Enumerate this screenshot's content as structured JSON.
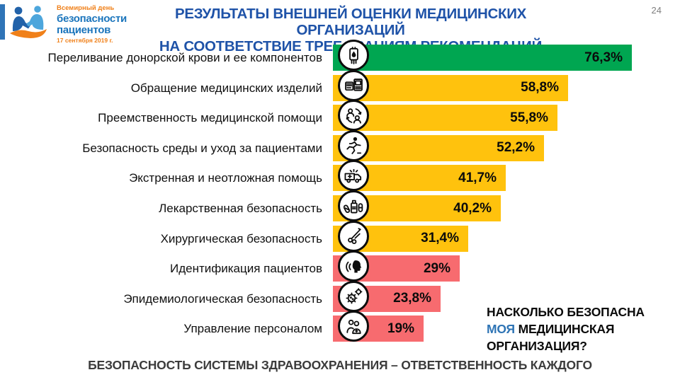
{
  "page_number": "24",
  "logo": {
    "line1": "Всемирный день",
    "line2": "безопасности",
    "line3": "пациентов",
    "line4": "17 сентября 2019 г."
  },
  "title": {
    "line1": "РЕЗУЛЬТАТЫ ВНЕШНЕЙ ОЦЕНКИ МЕДИЦИНСКИХ ОРГАНИЗАЦИЙ",
    "line2": "НА СООТВЕТСТВИЕ ТРЕБОВАНИЯМ РЕКОМЕНДАЦИЙ"
  },
  "chart_data": {
    "type": "bar",
    "orientation": "horizontal",
    "unit": "%",
    "xlim": [
      0,
      80
    ],
    "grid": false,
    "legend": "none",
    "categories": [
      "Переливание донорской крови и ее компонентов",
      "Обращение медицинских изделий",
      "Преемственность медицинской помощи",
      "Безопасность среды и уход за пациентами",
      "Экстренная и неотложная помощь",
      "Лекарственная безопасность",
      "Хирургическая безопасность",
      "Идентификация пациентов",
      "Эпидемиологическая безопасность",
      "Управление персоналом"
    ],
    "values": [
      76.3,
      58.8,
      55.8,
      52.2,
      41.7,
      40.2,
      31.4,
      29,
      23.8,
      19
    ],
    "value_labels": [
      "76,3%",
      "58,8%",
      "55,8%",
      "52,2%",
      "41,7%",
      "40,2%",
      "31,4%",
      "29%",
      "23,8%",
      "19%"
    ],
    "bar_color_keys": [
      "green",
      "yellow",
      "yellow",
      "yellow",
      "yellow",
      "yellow",
      "yellow",
      "red",
      "red",
      "red"
    ],
    "colors": {
      "green": "#00A651",
      "yellow": "#FFC20D",
      "red": "#F76B6F"
    },
    "icons": [
      "blood-bag-icon",
      "medical-devices-icon",
      "care-continuity-icon",
      "falling-patient-icon",
      "ambulance-icon",
      "medication-icon",
      "surgical-scissors-icon",
      "patient-identification-icon",
      "microbes-icon",
      "personnel-icon"
    ]
  },
  "annotation": {
    "line1": "НАСКОЛЬКО БЕЗОПАСНА",
    "line2_highlight": "МОЯ",
    "line2_rest": " МЕДИЦИНСКАЯ",
    "line3": "ОРГАНИЗАЦИЯ?",
    "highlight_color": "#2E74B5"
  },
  "footer": "БЕЗОПАСНОСТЬ СИСТЕМЫ ЗДРАВООХРАНЕНИЯ – ОТВЕТСТВЕННОСТЬ КАЖДОГО"
}
